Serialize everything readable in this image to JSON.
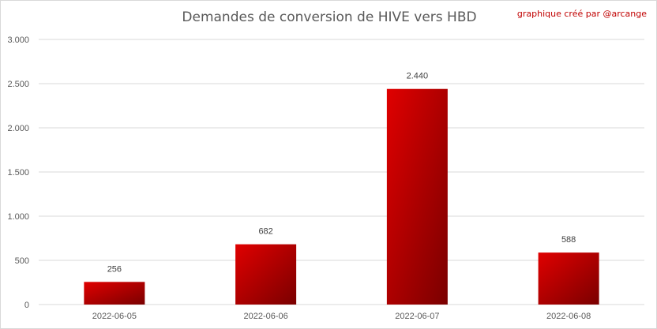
{
  "credit": "graphique créé par @arcange",
  "chart_data": {
    "type": "bar",
    "title": "Demandes de conversion de HIVE vers HBD",
    "categories": [
      "2022-06-05",
      "2022-06-06",
      "2022-06-07",
      "2022-06-08"
    ],
    "values": [
      256,
      682,
      2440,
      588
    ],
    "value_labels": [
      "256",
      "682",
      "2.440",
      "588"
    ],
    "y_ticks": [
      0,
      500,
      1000,
      1500,
      2000,
      2500,
      3000
    ],
    "y_tick_labels": [
      "0",
      "500",
      "1.000",
      "1.500",
      "2.000",
      "2.500",
      "3.000"
    ],
    "ylim": [
      0,
      3000
    ],
    "grid": true,
    "legend": "none",
    "bar_color_light": "#e00000",
    "bar_color_dark": "#7a0000",
    "grid_color": "#d9d9d9"
  }
}
